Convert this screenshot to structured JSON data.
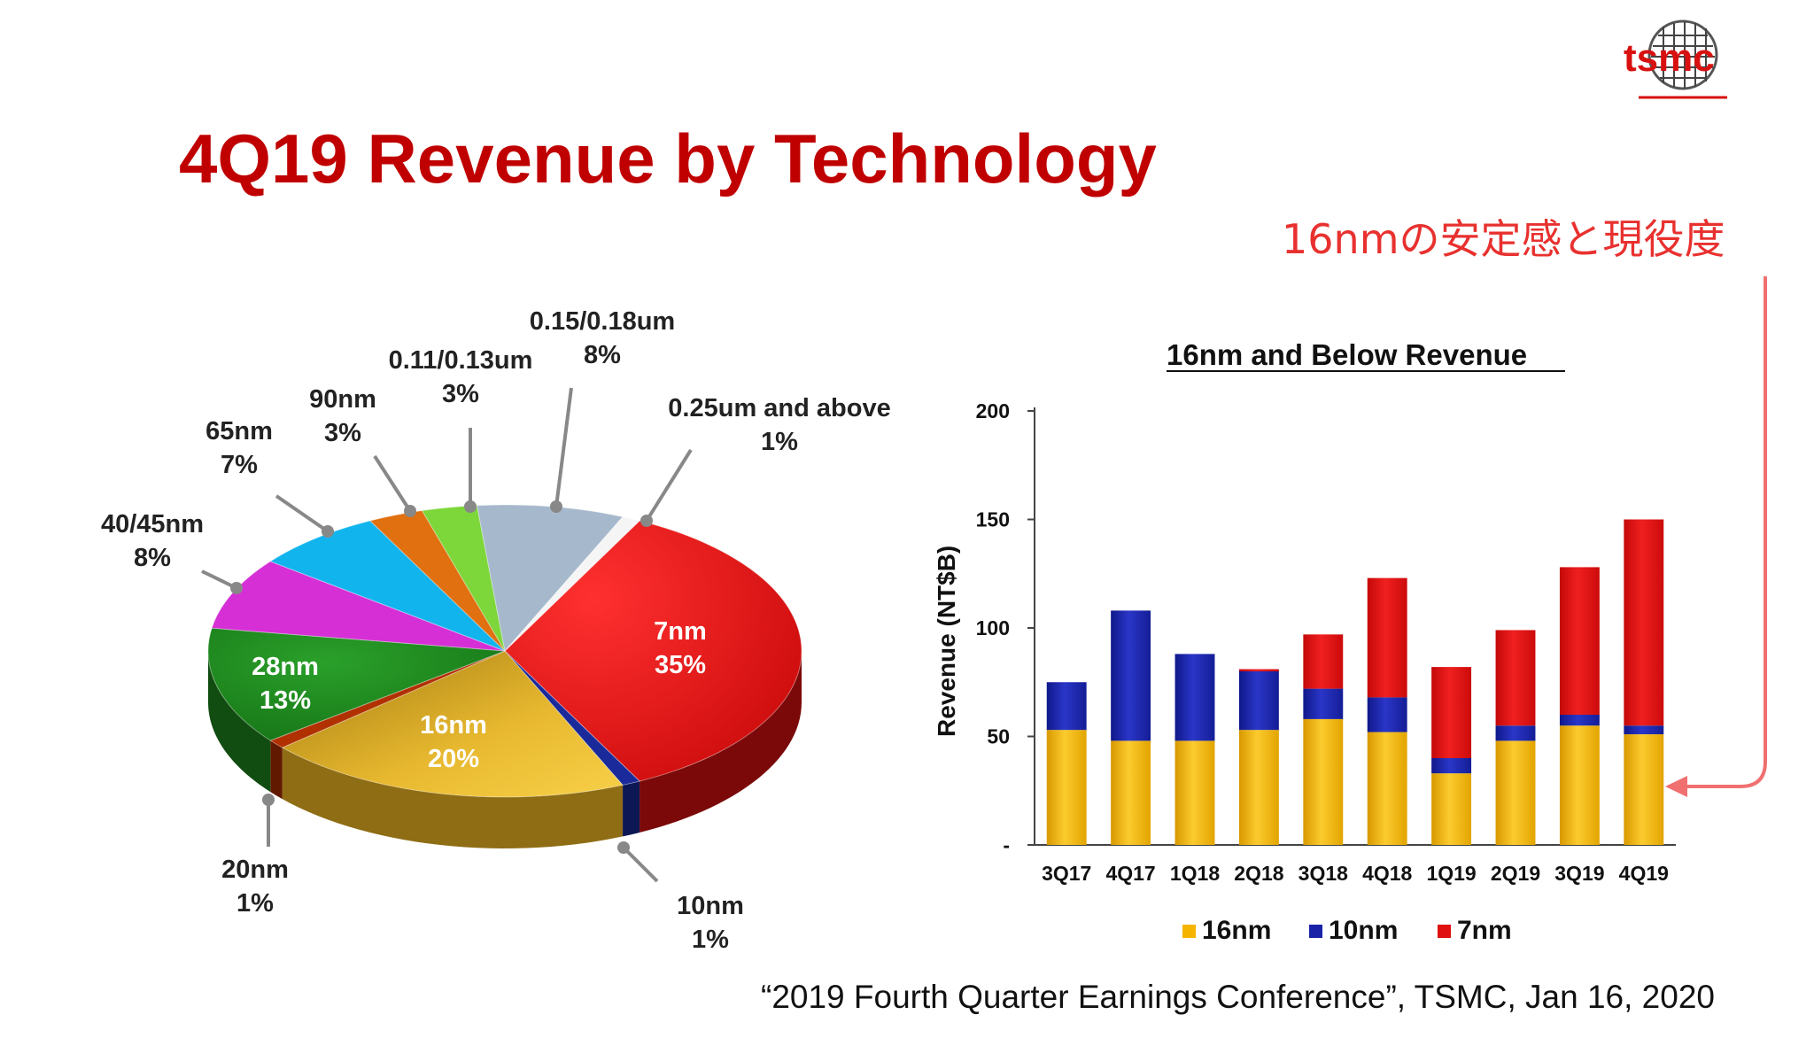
{
  "title": "4Q19 Revenue by Technology",
  "logo_text": "tsmc",
  "annotation": "16nmの安定感と現役度",
  "citation": "“2019 Fourth Quarter Earnings Conference”, TSMC, Jan 16, 2020",
  "colors": {
    "title": "#c00000",
    "annotation": "#e8312f",
    "arrow": "#f07070",
    "series_16nm": "#f5b400",
    "series_10nm": "#1a23a8",
    "series_7nm": "#e01010"
  },
  "chart_data": [
    {
      "type": "pie",
      "slices": [
        {
          "name": "7nm",
          "pct_label": "35%",
          "value": 35,
          "color": "#e01010"
        },
        {
          "name": "10nm",
          "pct_label": "1%",
          "value": 1,
          "color": "#1a2a9a"
        },
        {
          "name": "16nm",
          "pct_label": "20%",
          "value": 20,
          "color": "#e6b020"
        },
        {
          "name": "20nm",
          "pct_label": "1%",
          "value": 1,
          "color": "#b03000"
        },
        {
          "name": "28nm",
          "pct_label": "13%",
          "value": 13,
          "color": "#1f8a1f"
        },
        {
          "name": "40/45nm",
          "pct_label": "8%",
          "value": 8,
          "color": "#d52fd5"
        },
        {
          "name": "65nm",
          "pct_label": "7%",
          "value": 7,
          "color": "#12b4ee"
        },
        {
          "name": "90nm",
          "pct_label": "3%",
          "value": 3,
          "color": "#e07010"
        },
        {
          "name": "0.11/0.13um",
          "pct_label": "3%",
          "value": 3,
          "color": "#7dd63a"
        },
        {
          "name": "0.15/0.18um",
          "pct_label": "8%",
          "value": 8,
          "color": "#a6b8cc"
        },
        {
          "name": "0.25um and above",
          "pct_label": "1%",
          "value": 1,
          "color": "#f5f5f5"
        }
      ]
    },
    {
      "type": "bar",
      "stacked": true,
      "title": "16nm and Below Revenue",
      "ylabel": "Revenue (NT$B)",
      "xlabel": "",
      "ylim": [
        0,
        200
      ],
      "yticks": [
        "-",
        "50",
        "100",
        "150",
        "200"
      ],
      "categories": [
        "3Q17",
        "4Q17",
        "1Q18",
        "2Q18",
        "3Q18",
        "4Q18",
        "1Q19",
        "2Q19",
        "3Q19",
        "4Q19"
      ],
      "series": [
        {
          "name": "16nm",
          "color": "#f5b400",
          "values": [
            53,
            48,
            48,
            53,
            58,
            52,
            33,
            48,
            55,
            51
          ]
        },
        {
          "name": "10nm",
          "color": "#1a23a8",
          "values": [
            22,
            60,
            40,
            27,
            14,
            16,
            7,
            7,
            5,
            4
          ]
        },
        {
          "name": "7nm",
          "color": "#e01010",
          "values": [
            0,
            0,
            0,
            1,
            25,
            55,
            42,
            44,
            68,
            95
          ]
        }
      ],
      "legend": "bottom"
    }
  ]
}
